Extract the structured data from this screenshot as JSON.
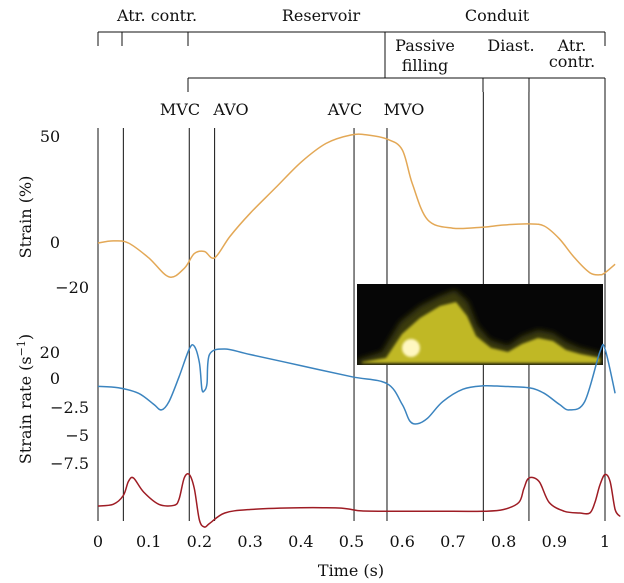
{
  "chart_data": {
    "type": "line",
    "xlabel": "Time (s)",
    "xlim": [
      0,
      1
    ],
    "x_ticks": [
      "0",
      "0.1",
      "0.2",
      "0.3",
      "0.4",
      "0.5",
      "0.6",
      "0.7",
      "0.8",
      "0.9",
      "1"
    ],
    "strain_ylabel": "Strain (%)",
    "strain_ticks": [
      "50",
      "0",
      "−20"
    ],
    "strain_ylim": [
      -20,
      50
    ],
    "rate_ylabel": "Strain rate (s",
    "rate_ylabel_sup": "−1",
    "rate_ylabel_close": ")",
    "rate_ticks": [
      "20",
      "0",
      "−2.5",
      "−5",
      "−7.5"
    ],
    "phases": {
      "atr_contr": "Atr. contr.",
      "reservoir": "Reservoir",
      "conduit": "Conduit",
      "passive_line1": "Passive",
      "passive_line2": "filling",
      "diast": "Diast.",
      "atr2_line1": "Atr.",
      "atr2_line2": "contr."
    },
    "events": [
      {
        "label": "MVC",
        "x": 0.18
      },
      {
        "label": "AVO",
        "x": 0.23
      },
      {
        "label": "AVC",
        "x": 0.505
      },
      {
        "label": "MVO",
        "x": 0.57
      }
    ],
    "extra_markers_x": [
      0.05,
      0.76,
      0.85,
      1.0
    ],
    "series": [
      {
        "id": "strain",
        "color": "#e3a856",
        "x": [
          0,
          0.03,
          0.06,
          0.1,
          0.14,
          0.17,
          0.19,
          0.21,
          0.23,
          0.26,
          0.3,
          0.35,
          0.4,
          0.45,
          0.5,
          0.53,
          0.57,
          0.6,
          0.62,
          0.65,
          0.7,
          0.76,
          0.8,
          0.85,
          0.88,
          0.91,
          0.94,
          0.97,
          0.99,
          1.0,
          1.02
        ],
        "y": [
          0,
          1,
          0,
          -7,
          -16,
          -12,
          -5,
          -4,
          -7,
          3,
          14,
          26,
          38,
          47,
          51,
          51,
          49,
          44,
          28,
          11,
          7,
          7.5,
          8.5,
          9,
          8,
          2,
          -7,
          -14,
          -15,
          -14,
          -10
        ]
      },
      {
        "id": "strain_rate",
        "color": "#3b84bf",
        "x": [
          0,
          0.04,
          0.08,
          0.11,
          0.125,
          0.14,
          0.16,
          0.18,
          0.19,
          0.2,
          0.205,
          0.21,
          0.215,
          0.22,
          0.25,
          0.3,
          0.4,
          0.5,
          0.57,
          0.6,
          0.615,
          0.63,
          0.65,
          0.68,
          0.72,
          0.76,
          0.8,
          0.85,
          0.88,
          0.91,
          0.93,
          0.96,
          0.99,
          1.0,
          1.02
        ],
        "y": [
          -0.5,
          -1,
          -3,
          -7,
          -9,
          -6,
          3,
          13,
          14,
          8,
          -1.5,
          -2,
          0.5,
          11,
          13,
          11,
          7,
          3,
          0.5,
          -7,
          -13,
          -14,
          -12,
          -6,
          -1.5,
          -0.3,
          -0.5,
          -1,
          -3,
          -7,
          -9,
          -6,
          12,
          13,
          -3
        ]
      },
      {
        "id": "third",
        "color": "#9e1c24",
        "x": [
          0,
          0.03,
          0.05,
          0.06,
          0.07,
          0.09,
          0.12,
          0.15,
          0.16,
          0.17,
          0.18,
          0.19,
          0.2,
          0.21,
          0.22,
          0.25,
          0.3,
          0.4,
          0.45,
          0.48,
          0.5,
          0.52,
          0.57,
          0.7,
          0.76,
          0.8,
          0.83,
          0.84,
          0.85,
          0.87,
          0.89,
          0.92,
          0.95,
          0.97,
          0.98,
          0.99,
          1.0,
          1.01,
          1.02,
          1.03
        ],
        "y": [
          0,
          0.5,
          3,
          7,
          8,
          4,
          0.5,
          0.2,
          2,
          8,
          9,
          5,
          -4,
          -6,
          -5,
          -2,
          -1,
          -0.5,
          -0.5,
          -0.6,
          -1,
          -1.4,
          -1.5,
          -1.5,
          -1.5,
          -1,
          1,
          5,
          8,
          7,
          1,
          -1.5,
          -2,
          -2,
          1,
          6,
          9,
          7,
          -1,
          -3
        ]
      }
    ],
    "echo_inset_colors": [
      "#ece22e",
      "#3a3a10",
      "#060606"
    ]
  }
}
